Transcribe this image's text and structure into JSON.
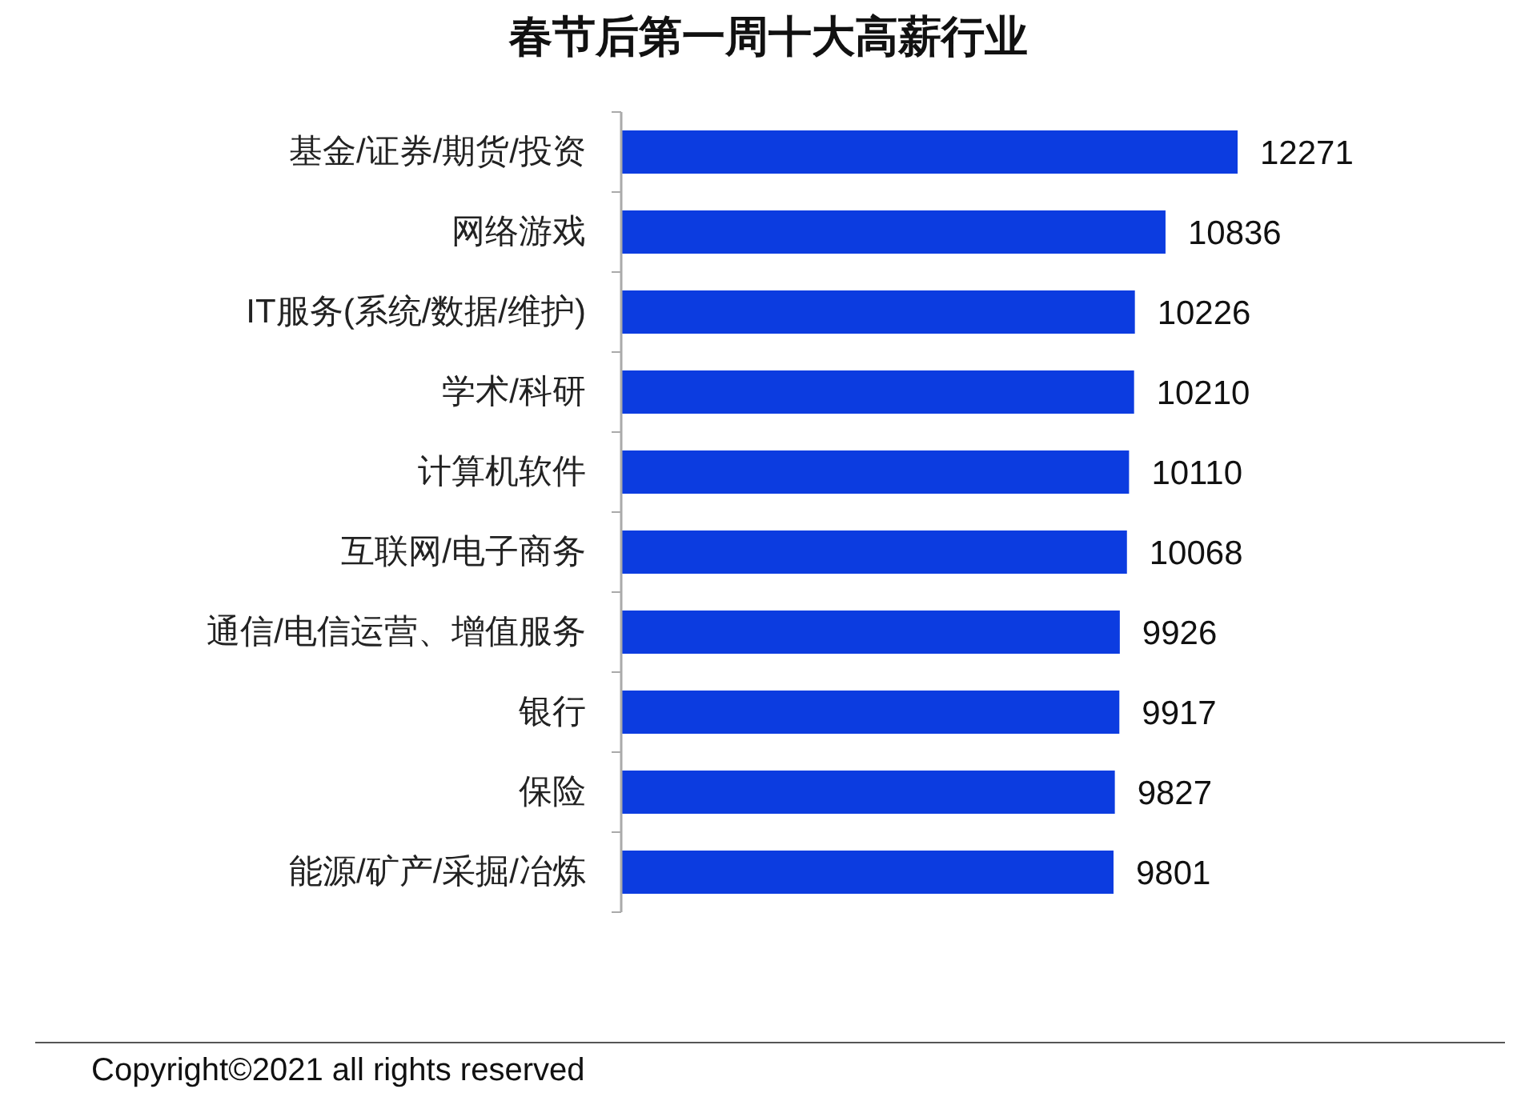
{
  "chart_data": {
    "type": "bar",
    "orientation": "horizontal",
    "title": "春节后第一周十大高薪行业",
    "categories": [
      "基金/证券/期货/投资",
      "网络游戏",
      "IT服务(系统/数据/维护)",
      "学术/科研",
      "计算机软件",
      "互联网/电子商务",
      "通信/电信运营、增值服务",
      "银行",
      "保险",
      "能源/矿产/采掘/冶炼"
    ],
    "values": [
      12271,
      10836,
      10226,
      10210,
      10110,
      10068,
      9926,
      9917,
      9827,
      9801
    ],
    "color": "#0c3ce0",
    "data_labels": true,
    "tick_labels": "y",
    "annotations": [
      "Copyright©2021 all rights reserved"
    ]
  }
}
